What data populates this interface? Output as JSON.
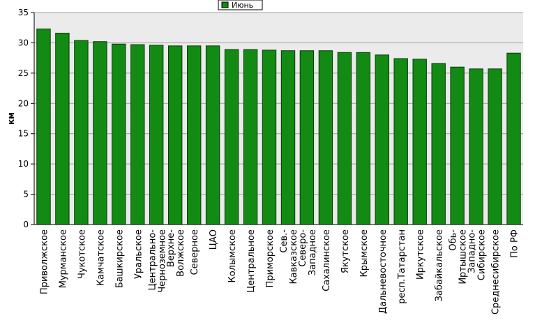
{
  "chart_data": {
    "type": "bar",
    "title": "",
    "xlabel": "",
    "ylabel": "км",
    "ylim": [
      0,
      35
    ],
    "yticks": [
      0,
      5,
      10,
      15,
      20,
      25,
      30,
      35
    ],
    "grid": true,
    "legend_position": "top-center",
    "categories": [
      "Приволжское",
      "Мурманское",
      "Чукотское",
      "Камчатское",
      "Башкирское",
      "Уральское",
      "Центрально-Черноземное",
      "Верхне-Волжское",
      "Северное",
      "ЦАО",
      "Колымское",
      "Центральное",
      "Приморское",
      "Сев.-Кавказское",
      "Северо-Западное",
      "Сахалинское",
      "Якутское",
      "Крымское",
      "Дальневосточное",
      "респ.Татарстан",
      "Иркутское",
      "Забайкальское",
      "Обь-Иртышское",
      "Западно-Сибирское",
      "Среднесибирское",
      "По РФ"
    ],
    "series": [
      {
        "name": "Июнь",
        "color": "#138a13",
        "values": [
          32.3,
          31.6,
          30.4,
          30.2,
          29.8,
          29.7,
          29.6,
          29.5,
          29.5,
          29.5,
          28.9,
          28.9,
          28.8,
          28.7,
          28.7,
          28.7,
          28.4,
          28.4,
          28.0,
          27.4,
          27.3,
          26.6,
          26.0,
          25.7,
          25.7,
          28.3
        ]
      }
    ],
    "colors": {
      "bar_fill": "#138a13",
      "bar_stroke": "#0a3a0a",
      "plot_background": "#ebebeb",
      "grid": "#a0a0a0",
      "axis": "#000000"
    }
  }
}
